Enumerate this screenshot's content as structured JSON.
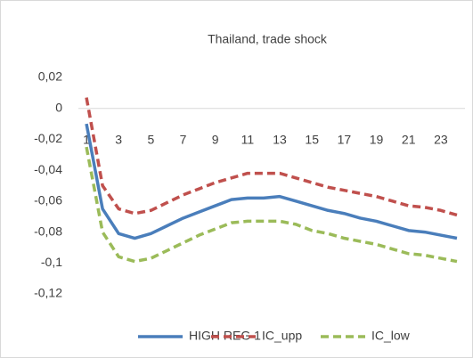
{
  "chart_data": {
    "type": "line",
    "title": "Thailand, trade shock",
    "categories": [
      1,
      null,
      3,
      null,
      5,
      null,
      7,
      null,
      9,
      null,
      11,
      null,
      13,
      null,
      15,
      null,
      17,
      null,
      19,
      null,
      21,
      null,
      23,
      null
    ],
    "series": [
      {
        "name": "HIGH REG 1",
        "color": "#4a7ebb",
        "dash": false,
        "values": [
          -0.01,
          -0.065,
          -0.081,
          -0.084,
          -0.081,
          -0.076,
          -0.071,
          -0.067,
          -0.063,
          -0.059,
          -0.058,
          -0.058,
          -0.057,
          -0.06,
          -0.063,
          -0.066,
          -0.068,
          -0.071,
          -0.073,
          -0.076,
          -0.079,
          -0.08,
          -0.082,
          -0.084
        ]
      },
      {
        "name": "IC_upp",
        "color": "#c0504d",
        "dash": true,
        "values": [
          0.007,
          -0.05,
          -0.065,
          -0.068,
          -0.066,
          -0.061,
          -0.056,
          -0.052,
          -0.048,
          -0.045,
          -0.042,
          -0.042,
          -0.042,
          -0.045,
          -0.048,
          -0.051,
          -0.053,
          -0.055,
          -0.057,
          -0.06,
          -0.063,
          -0.064,
          -0.066,
          -0.069
        ]
      },
      {
        "name": "IC_low",
        "color": "#9bbb59",
        "dash": true,
        "values": [
          -0.025,
          -0.08,
          -0.096,
          -0.099,
          -0.097,
          -0.092,
          -0.087,
          -0.082,
          -0.078,
          -0.074,
          -0.073,
          -0.073,
          -0.073,
          -0.075,
          -0.079,
          -0.081,
          -0.084,
          -0.086,
          -0.088,
          -0.091,
          -0.094,
          -0.095,
          -0.097,
          -0.099
        ]
      }
    ],
    "ylim": [
      -0.12,
      0.02
    ],
    "yticks": [
      {
        "value": 0.02,
        "label": "0,02"
      },
      0,
      {
        "value": -0.02,
        "label": "-0,02"
      },
      {
        "value": -0.04,
        "label": "-0,04"
      },
      {
        "value": -0.06,
        "label": "-0,06"
      },
      {
        "value": -0.08,
        "label": "-0,08"
      },
      {
        "value": -0.1,
        "label": "-0,1"
      },
      {
        "value": -0.12,
        "label": "-0,12"
      }
    ],
    "grid": false,
    "legend": "bottom"
  }
}
